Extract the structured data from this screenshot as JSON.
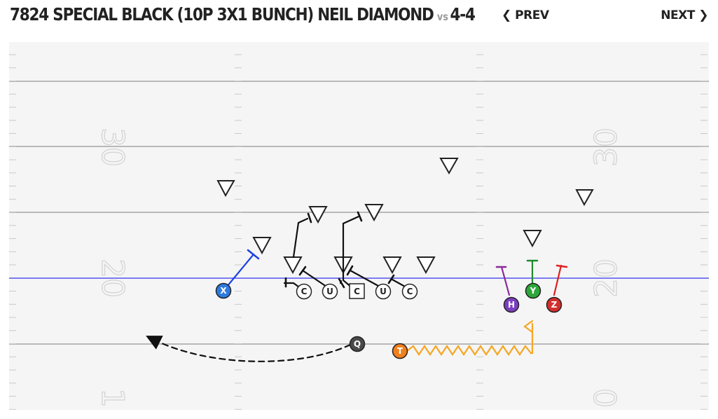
{
  "header": {
    "play_name": "7824 SPECIAL BLACK (10P 3X1 BUNCH) NEIL DIAMOND",
    "vs_label": "vs",
    "defense": "4-4",
    "prev_label": "PREV",
    "next_label": "NEXT"
  },
  "field": {
    "yard_numbers": {
      "left": [
        "30",
        "20",
        "1"
      ],
      "right": [
        "30",
        "20",
        "0"
      ]
    }
  },
  "players": [
    {
      "label": "X",
      "color": "#2e7be0"
    },
    {
      "label": "C",
      "color": "#ffffff"
    },
    {
      "label": "U",
      "color": "#ffffff"
    },
    {
      "label": "C",
      "color": "#ffffff"
    },
    {
      "label": "U",
      "color": "#ffffff"
    },
    {
      "label": "C",
      "color": "#ffffff"
    },
    {
      "label": "H",
      "color": "#7b3fc1"
    },
    {
      "label": "Y",
      "color": "#2fa63a"
    },
    {
      "label": "Z",
      "color": "#d32f2f"
    },
    {
      "label": "Q",
      "color": "#4a4a4a"
    },
    {
      "label": "T",
      "color": "#f07f1c"
    }
  ],
  "colors": {
    "line_of_scrimmage": "#7b7bf2",
    "yard_line": "#b9b9b9",
    "route_x": "#1b44e0",
    "route_h": "#8a2a9a",
    "route_y": "#1f8a2f",
    "route_z": "#e02020",
    "motion_t": "#f5a623"
  }
}
